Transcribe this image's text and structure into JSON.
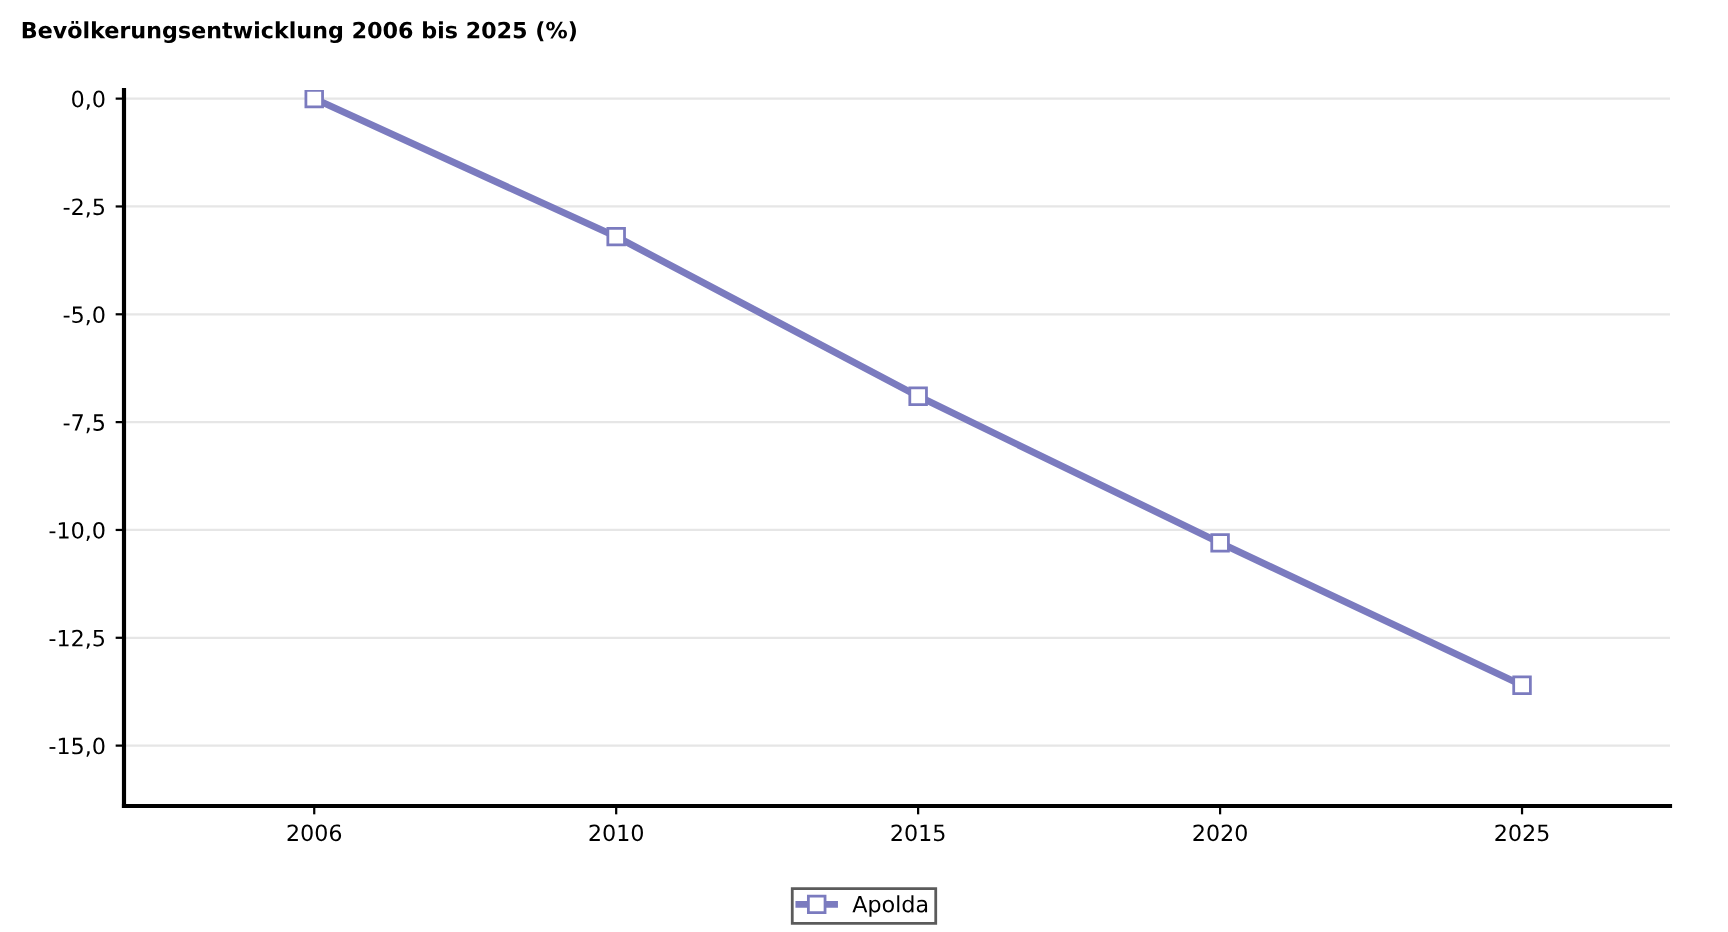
{
  "chart_data": {
    "type": "line",
    "title": "Bevölkerungsentwicklung 2006 bis 2025 (%)",
    "categories": [
      "2006",
      "2010",
      "2015",
      "2020",
      "2025"
    ],
    "series": [
      {
        "name": "Apolda",
        "color": "#7b7bbf",
        "values": [
          0.0,
          -3.2,
          -6.9,
          -10.3,
          -13.6
        ]
      }
    ],
    "ylim": [
      -16.4,
      0.2
    ],
    "yticks": [
      {
        "value": 0,
        "label": "0,0"
      },
      {
        "value": -2.5,
        "label": "-2,5"
      },
      {
        "value": -5,
        "label": "-5,0"
      },
      {
        "value": -7.5,
        "label": "-7,5"
      },
      {
        "value": -10,
        "label": "-10,0"
      },
      {
        "value": -12.5,
        "label": "-12,5"
      },
      {
        "value": -15,
        "label": "-15,0"
      }
    ],
    "grid": "y",
    "legend": "bottom",
    "marker": "square",
    "line_style": "solid"
  }
}
